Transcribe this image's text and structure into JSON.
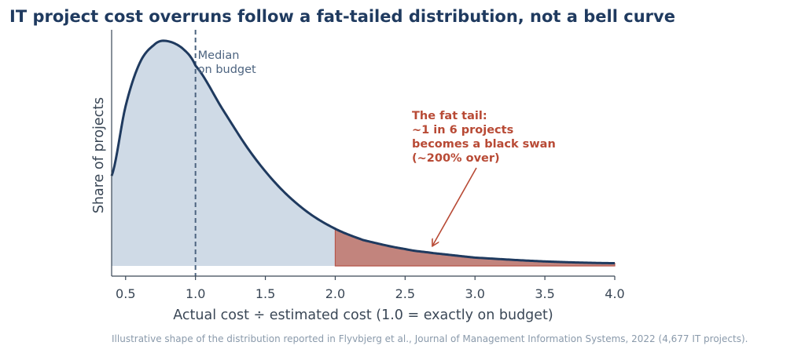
{
  "chart_data": {
    "type": "area",
    "title": "IT project cost overruns follow a fat-tailed distribution, not a bell curve",
    "xlabel": "Actual cost ÷ estimated cost  (1.0 = exactly on budget)",
    "ylabel": "Share of projects",
    "xlim": [
      0.4,
      4.0
    ],
    "x_ticks": [
      0.5,
      1.0,
      1.5,
      2.0,
      2.5,
      3.0,
      3.5,
      4.0
    ],
    "x_tick_labels": [
      "0.5",
      "1.0",
      "1.5",
      "2.0",
      "2.5",
      "3.0",
      "3.5",
      "4.0"
    ],
    "y_ticks_shown": false,
    "grid": false,
    "series": [
      {
        "values_description_free": true,
        "x": [
          0.4,
          0.5,
          0.6,
          0.7,
          0.78,
          0.9,
          1.0,
          1.2,
          1.4,
          1.6,
          1.8,
          2.0,
          2.2,
          2.5,
          2.7,
          3.0,
          3.5,
          4.0
        ],
        "y": [
          0.4,
          0.71,
          0.9,
          0.98,
          1.0,
          0.97,
          0.89,
          0.69,
          0.5,
          0.35,
          0.24,
          0.165,
          0.115,
          0.075,
          0.057,
          0.037,
          0.02,
          0.012
        ],
        "color": "#1f3a5f",
        "fill_color": "#cfdae6"
      }
    ],
    "tail_region": {
      "from_x": 2.0,
      "to_x": 4.0,
      "color": "#c2847d",
      "edge_color": "#b5554a"
    },
    "median_line": {
      "x": 1.0,
      "label": "Median\non budget",
      "color": "#4d6480"
    },
    "annotation": {
      "text": "The fat tail:\n~1 in 6 projects\nbecomes a black swan\n(~200% over)",
      "arrow_to_x": 2.7,
      "arrow_to_y": 0.08,
      "color": "#b84a35"
    },
    "caption": "Illustrative shape of the distribution reported in Flyvbjerg et al., Journal of Management Information Systems, 2022 (4,677 IT projects)."
  }
}
